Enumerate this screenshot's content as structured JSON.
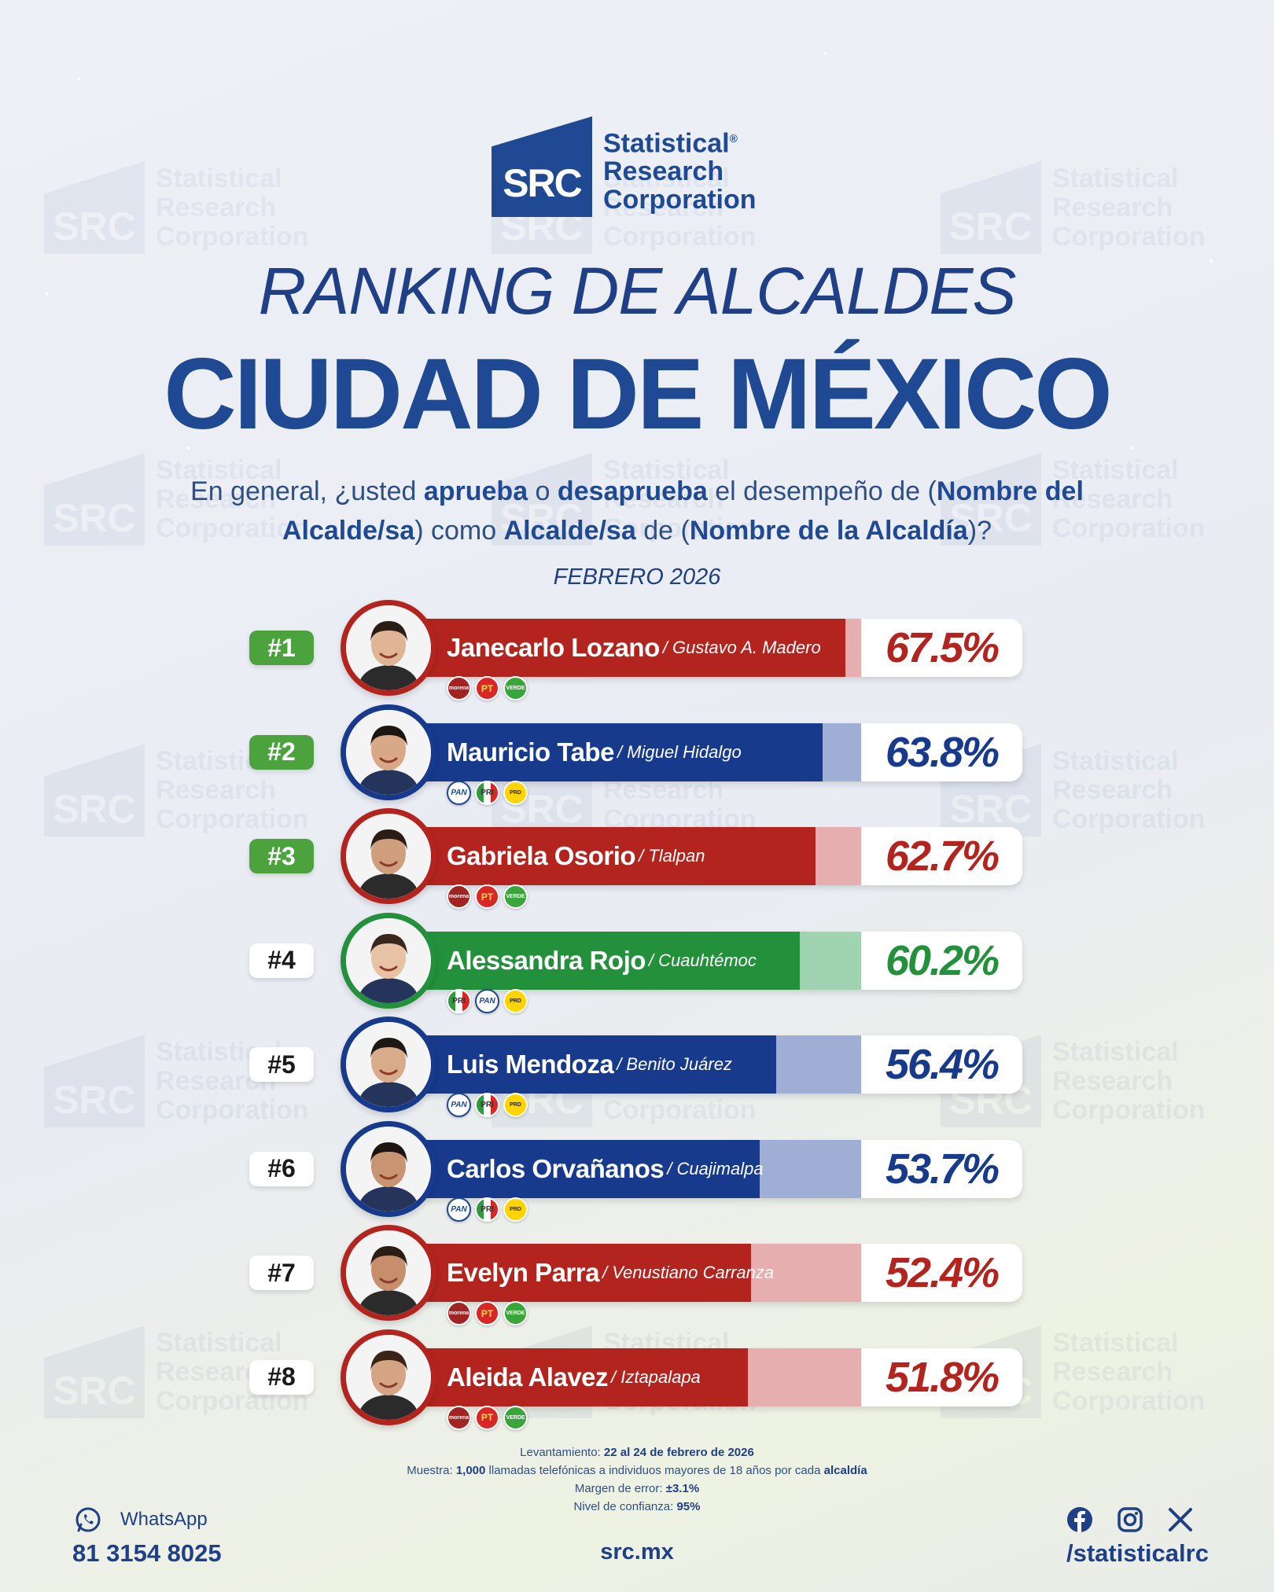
{
  "brand": {
    "mark": "SRC",
    "name_lines": [
      "Statistical",
      "Research",
      "Corporation"
    ],
    "registered": "®"
  },
  "title": {
    "line1": "RANKING DE ALCALDES",
    "line2": "CIUDAD DE MÉXICO"
  },
  "question": {
    "p1": "En general, ¿usted ",
    "b1": "aprueba",
    "p2": " o ",
    "b2": "desaprueba",
    "p3": " el desempeño de (",
    "b3": "Nombre del Alcalde/sa",
    "p4": ") como ",
    "b4": "Alcalde/sa",
    "p5": " de (",
    "b5": "Nombre de la Alcaldía",
    "p6": ")?"
  },
  "period": "FEBRERO 2026",
  "colors": {
    "red": "#b3241f",
    "red_tint": "#e6aeae",
    "blue": "#173a8c",
    "blue_tint": "#9eaed4",
    "green": "#23913c",
    "green_tint": "#9fd3b1",
    "rank_green": "#4ca33e"
  },
  "chart_data": {
    "type": "bar",
    "categories": [
      "Janecarlo Lozano",
      "Mauricio Tabe",
      "Gabriela Osorio",
      "Alessandra Rojo",
      "Luis Mendoza",
      "Carlos Orvañanos",
      "Evelyn Parra",
      "Aleida Alavez"
    ],
    "values": [
      67.5,
      63.8,
      62.7,
      60.2,
      56.4,
      53.7,
      52.4,
      51.8
    ],
    "ylim": [
      0,
      70
    ],
    "rows": [
      {
        "rank": "#1",
        "name": "Janecarlo Lozano",
        "alcaldia": "/ Gustavo A. Madero",
        "value": 67.5,
        "label": "67.5%",
        "color": "red",
        "parties": [
          "morena",
          "PT",
          "VERDE"
        ]
      },
      {
        "rank": "#2",
        "name": "Mauricio Tabe",
        "alcaldia": "/ Miguel Hidalgo",
        "value": 63.8,
        "label": "63.8%",
        "color": "blue",
        "parties": [
          "PAN",
          "PRI",
          "PRD"
        ]
      },
      {
        "rank": "#3",
        "name": "Gabriela Osorio",
        "alcaldia": "/ Tlalpan",
        "value": 62.7,
        "label": "62.7%",
        "color": "red",
        "parties": [
          "morena",
          "PT",
          "VERDE"
        ]
      },
      {
        "rank": "#4",
        "name": "Alessandra Rojo",
        "alcaldia": "/ Cuauhtémoc",
        "value": 60.2,
        "label": "60.2%",
        "color": "green",
        "parties": [
          "PRI",
          "PAN",
          "PRD"
        ]
      },
      {
        "rank": "#5",
        "name": "Luis Mendoza",
        "alcaldia": "/ Benito Juárez",
        "value": 56.4,
        "label": "56.4%",
        "color": "blue",
        "parties": [
          "PAN",
          "PRI",
          "PRD"
        ]
      },
      {
        "rank": "#6",
        "name": "Carlos Orvañanos",
        "alcaldia": "/ Cuajimalpa",
        "value": 53.7,
        "label": "53.7%",
        "color": "blue",
        "parties": [
          "PAN",
          "PRI",
          "PRD"
        ]
      },
      {
        "rank": "#7",
        "name": "Evelyn Parra",
        "alcaldia": "/ Venustiano Carranza",
        "value": 52.4,
        "label": "52.4%",
        "color": "red",
        "parties": [
          "morena",
          "PT",
          "VERDE"
        ]
      },
      {
        "rank": "#8",
        "name": "Aleida Alavez",
        "alcaldia": "/ Iztapalapa",
        "value": 51.8,
        "label": "51.8%",
        "color": "red",
        "parties": [
          "morena",
          "PT",
          "VERDE"
        ]
      }
    ]
  },
  "methodology": {
    "l1_label": "Levantamiento: ",
    "l1_value": "22 al 24 de febrero de 2026",
    "l2_label": "Muestra: ",
    "l2_v1": "1,000",
    "l2_mid": " llamadas telefónicas a individuos mayores de 18 años por cada ",
    "l2_v2": "alcaldía",
    "l3_label": "Margen de error: ",
    "l3_value": "±3.1%",
    "l4_label": "Nivel de confianza: ",
    "l4_value": "95%"
  },
  "footer": {
    "whatsapp_label": "WhatsApp",
    "phone": "81 3154 8025",
    "site": "src.mx",
    "handle": "/statisticalrc",
    "icons": [
      "whatsapp-icon",
      "facebook-icon",
      "instagram-icon",
      "x-icon"
    ]
  }
}
